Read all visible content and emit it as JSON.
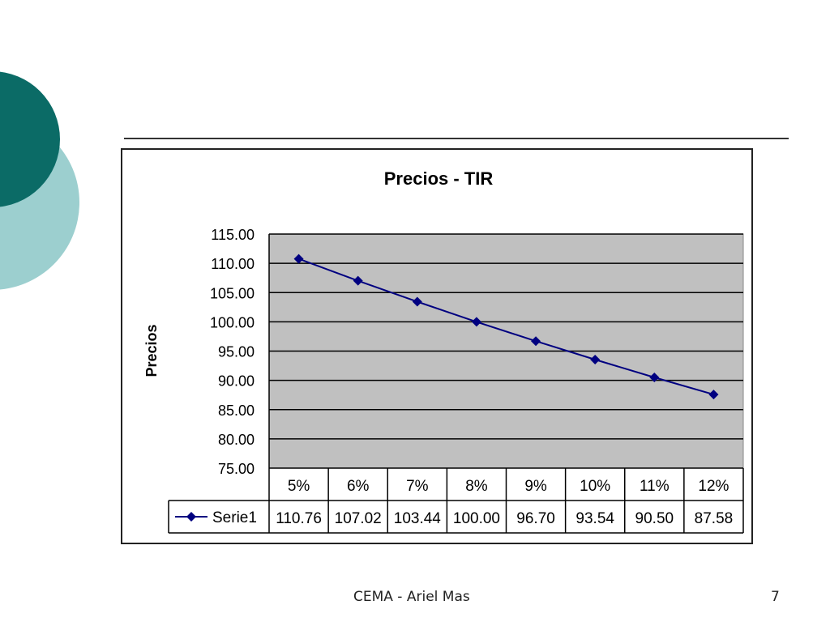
{
  "colors": {
    "circle_dark": "#0b6b66",
    "circle_light": "#9ccfcf",
    "plot_bg": "#c0c0c0",
    "series": "#000080"
  },
  "chart_data": {
    "type": "line",
    "title": "Precios - TIR",
    "xlabel": "",
    "ylabel": "Precios",
    "categories": [
      "5%",
      "6%",
      "7%",
      "8%",
      "9%",
      "10%",
      "11%",
      "12%"
    ],
    "series": [
      {
        "name": "Serie1",
        "values": [
          110.76,
          107.02,
          103.44,
          100.0,
          96.7,
          93.54,
          90.5,
          87.58
        ],
        "labels": [
          "110.76",
          "107.02",
          "103.44",
          "100.00",
          "96.70",
          "93.54",
          "90.50",
          "87.58"
        ]
      }
    ],
    "ylim": [
      75,
      115
    ],
    "yticks": [
      75,
      80,
      85,
      90,
      95,
      100,
      105,
      110,
      115
    ],
    "ytick_labels": [
      "75.00",
      "80.00",
      "85.00",
      "90.00",
      "95.00",
      "100.00",
      "105.00",
      "110.00",
      "115.00"
    ],
    "grid": true,
    "legend": "data-table"
  },
  "footer": {
    "left": "CEMA  - Ariel Mas",
    "right": "7"
  }
}
